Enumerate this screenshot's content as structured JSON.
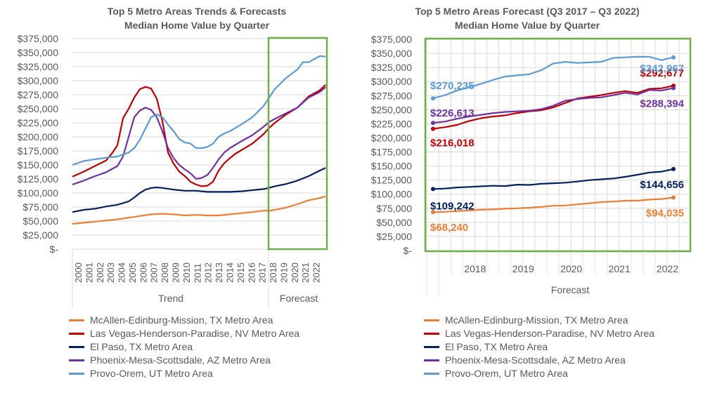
{
  "colors": {
    "mcallen": "#ED7D31",
    "lasvegas": "#C00000",
    "elpaso": "#002060",
    "phoenix": "#7030A0",
    "provo": "#5B9BD5",
    "forecast_box": "#70AD47",
    "grid": "#D9D9D9",
    "text": "#595959"
  },
  "legend": [
    {
      "key": "mcallen",
      "label": "McAllen-Edinburg-Mission, TX Metro Area"
    },
    {
      "key": "lasvegas",
      "label": "Las Vegas-Henderson-Paradise, NV Metro Area"
    },
    {
      "key": "elpaso",
      "label": "El Paso, TX Metro Area"
    },
    {
      "key": "phoenix",
      "label": "Phoenix-Mesa-Scottsdale, AZ Metro Area"
    },
    {
      "key": "provo",
      "label": "Provo-Orem, UT Metro Area"
    }
  ],
  "chart_data": [
    {
      "type": "line",
      "title": "Top 5 Metro Areas Trends & Forecasts",
      "subtitle": "Median Home Value by Quarter",
      "xlabel_groups": [
        "Trend",
        "Forecast"
      ],
      "x_ticks": [
        "2000",
        "2001",
        "2002",
        "2003",
        "2004",
        "2005",
        "2006",
        "2007",
        "2008",
        "2009",
        "2010",
        "2011",
        "2012",
        "2013",
        "2014",
        "2015",
        "2016",
        "2017",
        "2018",
        "2019",
        "2020",
        "2021",
        "2022"
      ],
      "y_ticks": [
        "$-",
        "$25,000",
        "$50,000",
        "$75,000",
        "$100,000",
        "$125,000",
        "$150,000",
        "$175,000",
        "$200,000",
        "$225,000",
        "$250,000",
        "$275,000",
        "$300,000",
        "$325,000",
        "$350,000",
        "$375,000"
      ],
      "ylim": [
        0,
        375000
      ],
      "x_range": [
        2000.0,
        2022.5
      ],
      "forecast_start": 2017.5,
      "grid": "horizontal",
      "legend_position": "bottom",
      "series": [
        {
          "key": "mcallen",
          "name": "McAllen-Edinburg-Mission, TX Metro Area",
          "x": [
            2000,
            2001,
            2002,
            2003,
            2004,
            2005,
            2006,
            2007,
            2008,
            2009,
            2010,
            2011,
            2012,
            2013,
            2014,
            2015,
            2016,
            2017,
            2017.5,
            2018,
            2019,
            2020,
            2021,
            2022,
            2022.5
          ],
          "values": [
            45000,
            47000,
            49000,
            51000,
            53000,
            56000,
            59000,
            62000,
            63000,
            62000,
            60000,
            61000,
            60000,
            60000,
            62000,
            64000,
            66000,
            68500,
            68240,
            70000,
            74000,
            80000,
            87000,
            91000,
            94035
          ]
        },
        {
          "key": "lasvegas",
          "name": "Las Vegas-Henderson-Paradise, NV Metro Area",
          "x": [
            2000,
            2001,
            2002,
            2003,
            2003.5,
            2004,
            2004.5,
            2005,
            2005.5,
            2006,
            2006.5,
            2007,
            2007.5,
            2008,
            2008.5,
            2009,
            2009.5,
            2010,
            2010.5,
            2011,
            2011.5,
            2012,
            2012.5,
            2013,
            2013.5,
            2014,
            2014.5,
            2015,
            2016,
            2017,
            2017.5,
            2018,
            2019,
            2020,
            2021,
            2022,
            2022.5
          ],
          "values": [
            129000,
            138000,
            148000,
            158000,
            170000,
            185000,
            233000,
            250000,
            270000,
            285000,
            289000,
            286000,
            268000,
            228000,
            172000,
            152000,
            138000,
            130000,
            120000,
            115000,
            112000,
            113000,
            120000,
            140000,
            153000,
            162000,
            170000,
            176000,
            188000,
            205000,
            216018,
            225000,
            240000,
            252000,
            272000,
            283000,
            292677
          ]
        },
        {
          "key": "elpaso",
          "name": "El Paso, TX Metro Area",
          "x": [
            2000,
            2001,
            2002,
            2003,
            2004,
            2005,
            2005.5,
            2006,
            2006.5,
            2007,
            2007.5,
            2008,
            2009,
            2010,
            2011,
            2012,
            2013,
            2014,
            2015,
            2016,
            2017,
            2017.5,
            2018,
            2019,
            2020,
            2021,
            2022,
            2022.5
          ],
          "values": [
            66000,
            70000,
            72000,
            76000,
            79000,
            85000,
            92000,
            100000,
            106000,
            109000,
            110000,
            109000,
            106000,
            104000,
            104000,
            102000,
            102000,
            102000,
            103000,
            105000,
            107000,
            109242,
            112000,
            116000,
            122000,
            130000,
            140000,
            144656
          ]
        },
        {
          "key": "phoenix",
          "name": "Phoenix-Mesa-Scottsdale, AZ Metro Area",
          "x": [
            2000,
            2001,
            2002,
            2003,
            2004,
            2004.5,
            2005,
            2005.5,
            2006,
            2006.5,
            2007,
            2007.5,
            2008,
            2008.5,
            2009,
            2009.5,
            2010,
            2010.5,
            2011,
            2011.5,
            2012,
            2012.5,
            2013,
            2013.5,
            2014,
            2015,
            2016,
            2017,
            2017.5,
            2018,
            2019,
            2020,
            2021,
            2022,
            2022.5
          ],
          "values": [
            115000,
            122000,
            130000,
            137000,
            148000,
            165000,
            200000,
            235000,
            247000,
            252000,
            248000,
            235000,
            210000,
            180000,
            162000,
            150000,
            142000,
            135000,
            125000,
            127000,
            132000,
            145000,
            160000,
            172000,
            180000,
            192000,
            203000,
            218000,
            226613,
            232000,
            242000,
            252000,
            270000,
            280000,
            288394
          ]
        },
        {
          "key": "provo",
          "name": "Provo-Orem, UT Metro Area",
          "x": [
            2000,
            2001,
            2002,
            2003,
            2004,
            2005,
            2005.5,
            2006,
            2006.5,
            2007,
            2007.5,
            2008,
            2008.5,
            2009,
            2009.5,
            2010,
            2010.5,
            2011,
            2011.5,
            2012,
            2012.5,
            2013,
            2013.5,
            2014,
            2015,
            2016,
            2017,
            2017.5,
            2018,
            2019,
            2020,
            2020.5,
            2021,
            2022,
            2022.5
          ],
          "values": [
            150000,
            157000,
            160000,
            163000,
            165000,
            172000,
            180000,
            195000,
            215000,
            235000,
            240000,
            235000,
            222000,
            210000,
            196000,
            190000,
            188000,
            180000,
            180000,
            182000,
            188000,
            200000,
            206000,
            210000,
            222000,
            235000,
            255000,
            270235,
            285000,
            305000,
            320000,
            333000,
            333000,
            344000,
            342967
          ]
        }
      ]
    },
    {
      "type": "line",
      "title": "Top 5 Metro Areas Forecast (Q3 2017 – Q3 2022)",
      "subtitle": "Median Home Value by Quarter",
      "xlabel": "Forecast",
      "x_ticks": [
        "2018",
        "2019",
        "2020",
        "2021",
        "2022"
      ],
      "y_ticks": [
        "$-",
        "$25,000",
        "$50,000",
        "$75,000",
        "$100,000",
        "$125,000",
        "$150,000",
        "$175,000",
        "$200,000",
        "$225,000",
        "$250,000",
        "$275,000",
        "$300,000",
        "$325,000",
        "$350,000",
        "$375,000"
      ],
      "ylim": [
        0,
        375000
      ],
      "quarters": [
        "Q3 2017",
        "Q4 2017",
        "Q1 2018",
        "Q2 2018",
        "Q3 2018",
        "Q4 2018",
        "Q1 2019",
        "Q2 2019",
        "Q3 2019",
        "Q4 2019",
        "Q1 2020",
        "Q2 2020",
        "Q3 2020",
        "Q4 2020",
        "Q1 2021",
        "Q2 2021",
        "Q3 2021",
        "Q4 2021",
        "Q1 2022",
        "Q2 2022",
        "Q3 2022"
      ],
      "grid": "both",
      "legend_position": "bottom",
      "series": [
        {
          "key": "mcallen",
          "name": "McAllen-Edinburg-Mission, TX Metro Area",
          "values": [
            68240,
            68800,
            70000,
            71200,
            72400,
            73000,
            74200,
            75000,
            76000,
            77500,
            79500,
            80000,
            82000,
            84000,
            86000,
            87000,
            88500,
            88500,
            90500,
            91500,
            94035
          ],
          "labels": {
            "start": "$68,240",
            "end": "$94,035"
          }
        },
        {
          "key": "lasvegas",
          "name": "Las Vegas-Henderson-Paradise, NV Metro Area",
          "values": [
            216018,
            219000,
            223000,
            230000,
            235000,
            238000,
            240000,
            244000,
            247000,
            249000,
            254000,
            262000,
            270000,
            273000,
            276000,
            280000,
            283000,
            280000,
            287000,
            288000,
            292677
          ],
          "labels": {
            "start": "$216,018",
            "end": "$292,677"
          }
        },
        {
          "key": "elpaso",
          "name": "El Paso, TX Metro Area",
          "values": [
            109242,
            110000,
            112000,
            113000,
            114000,
            115000,
            114500,
            117000,
            116500,
            118500,
            119500,
            120500,
            122500,
            125000,
            126500,
            128000,
            131000,
            134500,
            138500,
            140000,
            144656
          ],
          "labels": {
            "start": "$109,242",
            "end": "$144,656"
          }
        },
        {
          "key": "phoenix",
          "name": "Phoenix-Mesa-Scottsdale, AZ Metro Area",
          "values": [
            226613,
            229000,
            234000,
            238000,
            241000,
            244000,
            246000,
            247000,
            248000,
            251000,
            257000,
            266000,
            269000,
            271000,
            272000,
            276000,
            280000,
            277000,
            285000,
            284000,
            288394
          ],
          "labels": {
            "start": "$226,613",
            "end": "$288,394"
          }
        },
        {
          "key": "provo",
          "name": "Provo-Orem, UT Metro Area",
          "values": [
            270235,
            276000,
            284000,
            290000,
            296000,
            303000,
            309000,
            311000,
            313000,
            320000,
            332000,
            335000,
            333000,
            334000,
            335000,
            342000,
            343000,
            344000,
            344000,
            338000,
            342967
          ],
          "labels": {
            "start": "$270,235",
            "end": "$342,967"
          }
        }
      ]
    }
  ]
}
